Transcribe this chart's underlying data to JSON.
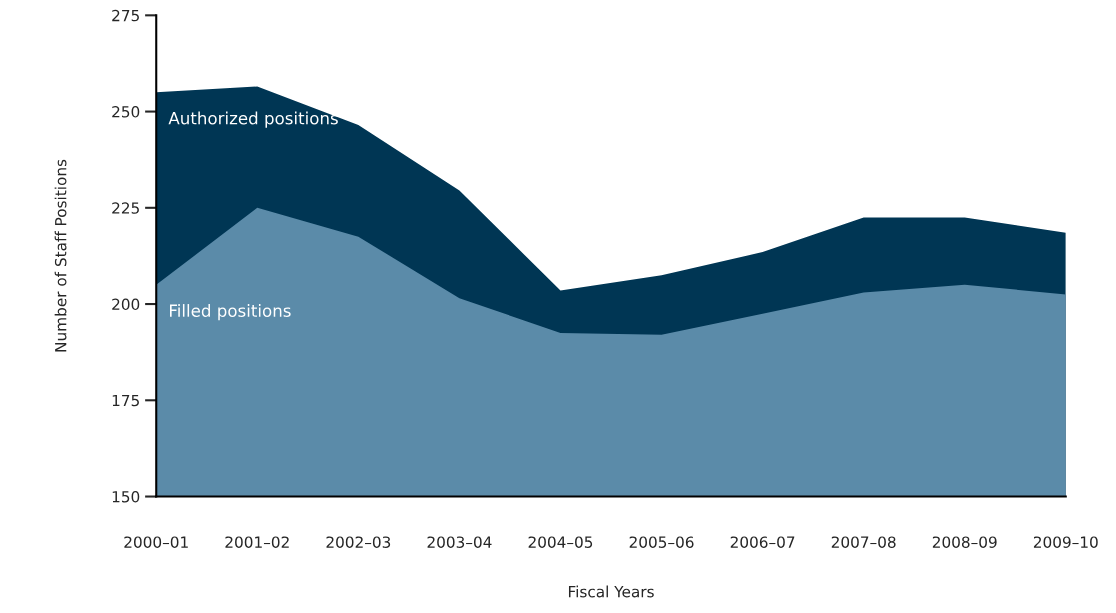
{
  "chart_data": {
    "type": "area",
    "xlabel": "Fiscal Years",
    "ylabel": "Number of Staff Positions",
    "categories": [
      "2000–01",
      "2001–02",
      "2002–03",
      "2003–04",
      "2004–05",
      "2005–06",
      "2006–07",
      "2007–08",
      "2008–09",
      "2009–10"
    ],
    "series": [
      {
        "name": "Authorized positions",
        "color": "#003654",
        "values": [
          255,
          256.5,
          246.5,
          229.5,
          203.5,
          207.5,
          213.5,
          222.5,
          222.5,
          218.5
        ]
      },
      {
        "name": "Filled positions",
        "color": "#5b8ba9",
        "values": [
          205,
          225,
          217.5,
          201.5,
          192.5,
          192,
          197.5,
          203,
          205,
          202.5
        ]
      }
    ],
    "ylim": [
      150,
      275
    ],
    "yticks": [
      150,
      175,
      200,
      225,
      250,
      275
    ],
    "grid": false,
    "legend": false
  }
}
